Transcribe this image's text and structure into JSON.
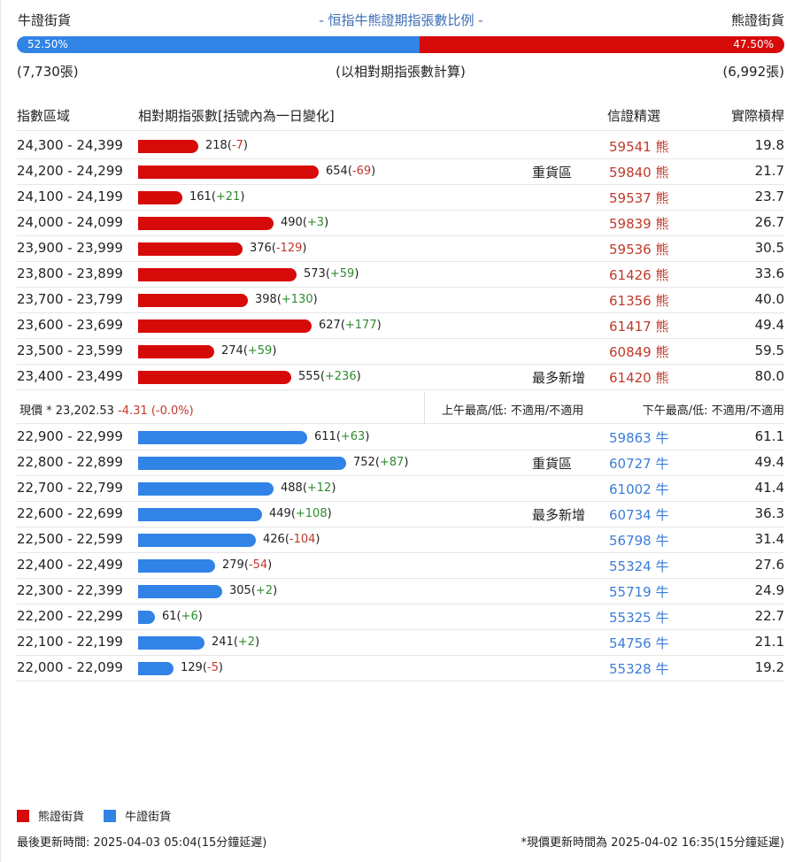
{
  "header": {
    "bull_label": "牛證街貨",
    "title": "- 恒指牛熊證期指張數比例 -",
    "bear_label": "熊證街貨"
  },
  "ratio": {
    "bull_pct": "52.50%",
    "bear_pct": "47.50%",
    "bull_fraction": 0.525,
    "bull_color": "#3183e6",
    "bear_color": "#d70a0a"
  },
  "counts": {
    "bull": "(7,730張)",
    "note": "(以相對期指張數計算)",
    "bear": "(6,992張)"
  },
  "columns": {
    "range": "指數區域",
    "count": "相對期指張數[括號內為一日變化]",
    "pick": "信證精選",
    "leverage": "實際槓桿"
  },
  "bear_rows": [
    {
      "range": "24,300 - 24,399",
      "count": 218,
      "count_text": "218(",
      "chg": "-7",
      "tail": ")",
      "tag": "",
      "code": "59541 熊",
      "lev": "19.8"
    },
    {
      "range": "24,200 - 24,299",
      "count": 654,
      "count_text": "654(",
      "chg": "-69",
      "tail": ")",
      "tag": "重貨區",
      "code": "59840 熊",
      "lev": "21.7"
    },
    {
      "range": "24,100 - 24,199",
      "count": 161,
      "count_text": "161(",
      "chg": "+21",
      "tail": ")",
      "tag": "",
      "code": "59537 熊",
      "lev": "23.7"
    },
    {
      "range": "24,000 - 24,099",
      "count": 490,
      "count_text": "490(",
      "chg": "+3",
      "tail": ")",
      "tag": "",
      "code": "59839 熊",
      "lev": "26.7"
    },
    {
      "range": "23,900 - 23,999",
      "count": 376,
      "count_text": "376(",
      "chg": "-129",
      "tail": ")",
      "tag": "",
      "code": "59536 熊",
      "lev": "30.5"
    },
    {
      "range": "23,800 - 23,899",
      "count": 573,
      "count_text": "573(",
      "chg": "+59",
      "tail": ")",
      "tag": "",
      "code": "61426 熊",
      "lev": "33.6"
    },
    {
      "range": "23,700 - 23,799",
      "count": 398,
      "count_text": "398(",
      "chg": "+130",
      "tail": ")",
      "tag": "",
      "code": "61356 熊",
      "lev": "40.0"
    },
    {
      "range": "23,600 - 23,699",
      "count": 627,
      "count_text": "627(",
      "chg": "+177",
      "tail": ")",
      "tag": "",
      "code": "61417 熊",
      "lev": "49.4"
    },
    {
      "range": "23,500 - 23,599",
      "count": 274,
      "count_text": "274(",
      "chg": "+59",
      "tail": ")",
      "tag": "",
      "code": "60849 熊",
      "lev": "59.5"
    },
    {
      "range": "23,400 - 23,499",
      "count": 555,
      "count_text": "555(",
      "chg": "+236",
      "tail": ")",
      "tag": "最多新增",
      "code": "61420 熊",
      "lev": "80.0"
    }
  ],
  "spot": {
    "label": "現價 *",
    "price": "23,202.53",
    "change": "-4.31 (-0.0%)",
    "am": "上午最高/低: 不適用/不適用",
    "pm": "下午最高/低: 不適用/不適用"
  },
  "bull_rows": [
    {
      "range": "22,900 - 22,999",
      "count": 611,
      "count_text": "611(",
      "chg": "+63",
      "tail": ")",
      "tag": "",
      "code": "59863 牛",
      "lev": "61.1"
    },
    {
      "range": "22,800 - 22,899",
      "count": 752,
      "count_text": "752(",
      "chg": "+87",
      "tail": ")",
      "tag": "重貨區",
      "code": "60727 牛",
      "lev": "49.4"
    },
    {
      "range": "22,700 - 22,799",
      "count": 488,
      "count_text": "488(",
      "chg": "+12",
      "tail": ")",
      "tag": "",
      "code": "61002 牛",
      "lev": "41.4"
    },
    {
      "range": "22,600 - 22,699",
      "count": 449,
      "count_text": "449(",
      "chg": "+108",
      "tail": ")",
      "tag": "最多新增",
      "code": "60734 牛",
      "lev": "36.3"
    },
    {
      "range": "22,500 - 22,599",
      "count": 426,
      "count_text": "426(",
      "chg": "-104",
      "tail": ")",
      "tag": "",
      "code": "56798 牛",
      "lev": "31.4"
    },
    {
      "range": "22,400 - 22,499",
      "count": 279,
      "count_text": "279(",
      "chg": "-54",
      "tail": ")",
      "tag": "",
      "code": "55324 牛",
      "lev": "27.6"
    },
    {
      "range": "22,300 - 22,399",
      "count": 305,
      "count_text": "305(",
      "chg": "+2",
      "tail": ")",
      "tag": "",
      "code": "55719 牛",
      "lev": "24.9"
    },
    {
      "range": "22,200 - 22,299",
      "count": 61,
      "count_text": "61(",
      "chg": "+6",
      "tail": ")",
      "tag": "",
      "code": "55325 牛",
      "lev": "22.7"
    },
    {
      "range": "22,100 - 22,199",
      "count": 241,
      "count_text": "241(",
      "chg": "+2",
      "tail": ")",
      "tag": "",
      "code": "54756 牛",
      "lev": "21.1"
    },
    {
      "range": "22,000 - 22,099",
      "count": 129,
      "count_text": "129(",
      "chg": "-5",
      "tail": ")",
      "tag": "",
      "code": "55328 牛",
      "lev": "19.2"
    }
  ],
  "legend": {
    "bear": "熊證街貨",
    "bull": "牛證街貨"
  },
  "footer": {
    "updated": "最後更新時間: 2025-04-03 05:04(15分鐘延遲)",
    "spot_updated": "*現價更新時間為 2025-04-02 16:35(15分鐘延遲)"
  }
}
